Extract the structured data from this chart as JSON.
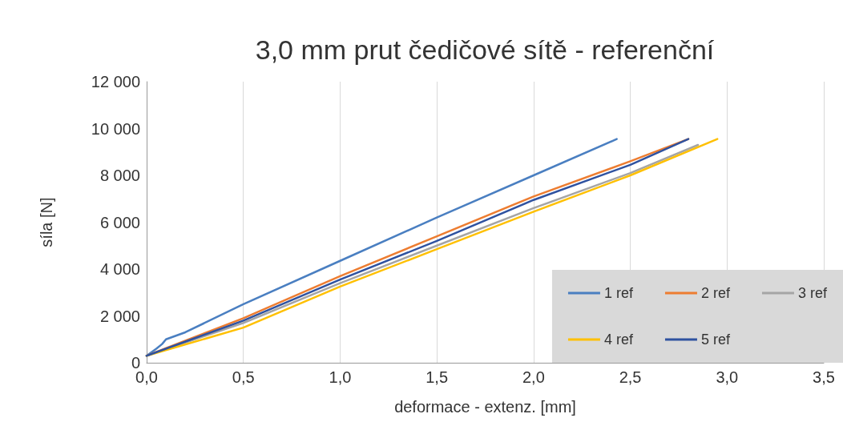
{
  "chart_data": {
    "type": "line",
    "title": "3,0 mm prut čedičové sítě - referenční",
    "xlabel": "deformace - extenz. [mm]",
    "ylabel": "síla [N]",
    "xlim": [
      0,
      3.5
    ],
    "xticks": [
      {
        "value": 0,
        "label": "0,0"
      },
      {
        "value": 0.5,
        "label": "0,5"
      },
      {
        "value": 1,
        "label": "1,0"
      },
      {
        "value": 1.5,
        "label": "1,5"
      },
      {
        "value": 2,
        "label": "2,0"
      },
      {
        "value": 2.5,
        "label": "2,5"
      },
      {
        "value": 3,
        "label": "3,0"
      },
      {
        "value": 3.5,
        "label": "3,5"
      }
    ],
    "ylim": [
      0,
      12000
    ],
    "yticks": [
      0,
      {
        "value": 2000,
        "label": "2 000"
      },
      {
        "value": 4000,
        "label": "4 000"
      },
      {
        "value": 6000,
        "label": "6 000"
      },
      {
        "value": 8000,
        "label": "8 000"
      },
      {
        "value": 10000,
        "label": "10 000"
      },
      {
        "value": 12000,
        "label": "12 000"
      }
    ],
    "grid": "x",
    "legend": "bottom right",
    "marker": "none",
    "line_style": "solid",
    "series": [
      {
        "name": "1 ref",
        "color": "#4a7fc1",
        "x": [
          0,
          0.05,
          0.08,
          0.1,
          0.2,
          0.5,
          1.0,
          1.5,
          2.0,
          2.43
        ],
        "values": [
          300,
          600,
          800,
          1000,
          1300,
          2500,
          4350,
          6200,
          8000,
          9550
        ]
      },
      {
        "name": "2 ref",
        "color": "#ed7d31",
        "x": [
          0,
          0.5,
          1.0,
          1.5,
          2.0,
          2.5,
          2.8
        ],
        "values": [
          300,
          1900,
          3700,
          5400,
          7100,
          8600,
          9550
        ]
      },
      {
        "name": "3 ref",
        "color": "#a5a5a5",
        "x": [
          0,
          0.5,
          1.0,
          1.5,
          2.0,
          2.5,
          2.85
        ],
        "values": [
          300,
          1700,
          3400,
          5000,
          6600,
          8100,
          9300
        ]
      },
      {
        "name": "4 ref",
        "color": "#ffc000",
        "x": [
          0,
          0.5,
          1.0,
          1.5,
          2.0,
          2.5,
          2.95
        ],
        "values": [
          300,
          1500,
          3250,
          4850,
          6450,
          8000,
          9550
        ]
      },
      {
        "name": "5 ref",
        "color": "#2f52a0",
        "x": [
          0,
          0.5,
          1.0,
          1.5,
          2.0,
          2.5,
          2.8
        ],
        "values": [
          300,
          1800,
          3550,
          5200,
          6950,
          8450,
          9550
        ]
      }
    ]
  }
}
